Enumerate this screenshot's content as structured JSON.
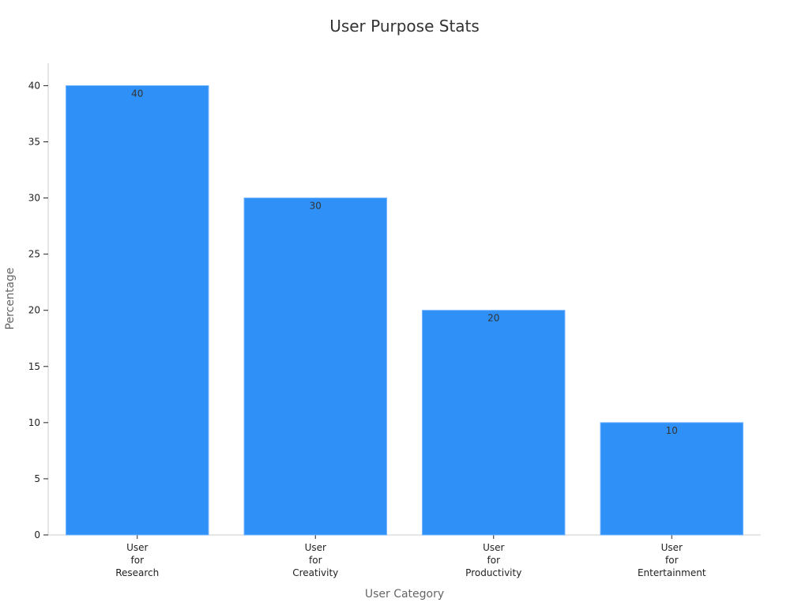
{
  "chart_data": {
    "type": "bar",
    "title": "User Purpose Stats",
    "xlabel": "User Category",
    "ylabel": "Percentage",
    "categories": [
      [
        "User",
        "for",
        "Research"
      ],
      [
        "User",
        "for",
        "Creativity"
      ],
      [
        "User",
        "for",
        "Productivity"
      ],
      [
        "User",
        "for",
        "Entertainment"
      ]
    ],
    "values": [
      40,
      30,
      20,
      10
    ],
    "ylim": [
      0,
      42
    ],
    "yticks": [
      0,
      5,
      10,
      15,
      20,
      25,
      30,
      35,
      40
    ],
    "grid": false,
    "legend": "none",
    "data_labels": true
  },
  "colors": {
    "bar": "#2f91f8",
    "bar_edge": "#6bb0ff",
    "axis": "#cccccc",
    "title": "#333333",
    "axis_label": "#666666",
    "tick_label": "#222222",
    "value_label": "#333333"
  }
}
